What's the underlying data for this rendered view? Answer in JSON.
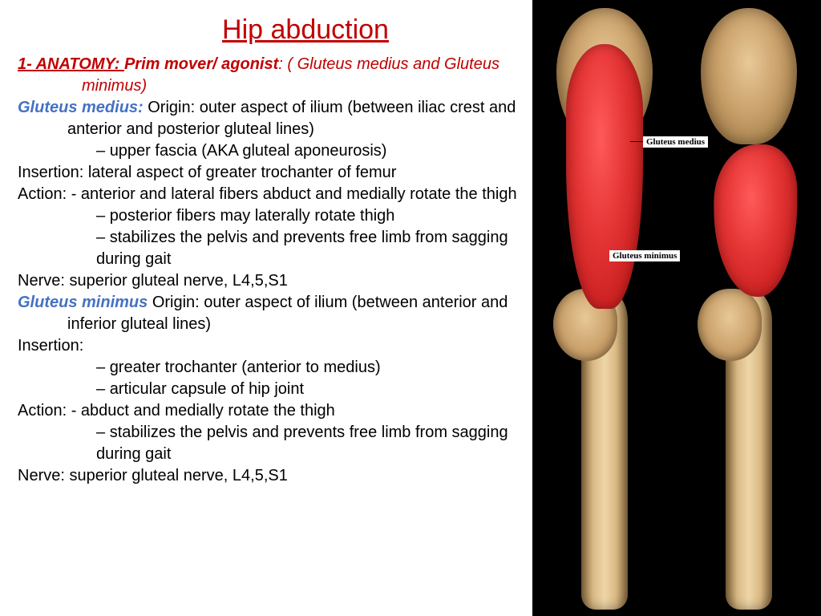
{
  "title": "Hip abduction",
  "colors": {
    "title": "#c00000",
    "accent_red": "#c00000",
    "accent_blue": "#4472c4",
    "text": "#000000",
    "background": "#ffffff",
    "muscle_fill": "#e63636",
    "bone_fill": "#d9b984",
    "image_bg": "#000000"
  },
  "anatomy": {
    "section_label": "1- ANATOMY: ",
    "prim_mover_label": "Prim mover/ agonist",
    "muscle_group": ": ( Gluteus medius and Gluteus minimus)",
    "medius": {
      "name": "Gluteus medius: ",
      "origin_line": "Origin: outer aspect of ilium (between iliac crest and anterior and posterior gluteal lines)",
      "origin_bullets": [
        "upper fascia (AKA gluteal aponeurosis)"
      ],
      "insertion": "Insertion: lateral aspect of greater trochanter of femur",
      "action_line": "Action: - anterior and lateral fibers abduct and medially rotate the thigh",
      "action_bullets": [
        "posterior fibers may laterally rotate thigh",
        "stabilizes the pelvis and prevents free limb from sagging during gait"
      ],
      "nerve": "Nerve: superior gluteal nerve, L4,5,S1"
    },
    "minimus": {
      "name": "Gluteus minimus ",
      "origin_line": "Origin: outer aspect of ilium (between anterior and inferior gluteal lines)",
      "insertion_label": "Insertion:",
      "insertion_bullets": [
        "greater trochanter (anterior to medius)",
        "articular capsule of hip joint"
      ],
      "action_line": "Action: - abduct and medially rotate the thigh",
      "action_bullets": [
        "stabilizes the pelvis and prevents free limb from sagging during gait"
      ],
      "nerve": "Nerve: superior gluteal nerve, L4,5,S1"
    }
  },
  "diagram": {
    "labels": {
      "medius": "Gluteus medius",
      "minimus": "Gluteus minimus"
    },
    "views": [
      "posterior-left",
      "posterior-right"
    ]
  }
}
